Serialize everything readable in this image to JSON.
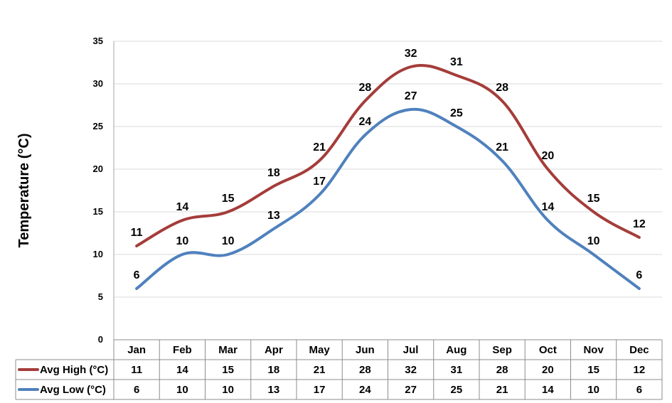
{
  "chart_data": {
    "type": "line",
    "title": "",
    "xlabel": "",
    "ylabel": "Temperature (°C)",
    "ylim": [
      0,
      35
    ],
    "yticks": [
      "0",
      "5",
      "10",
      "15",
      "20",
      "25",
      "30",
      "35"
    ],
    "grid": true,
    "smooth": true,
    "categories": [
      "Jan",
      "Feb",
      "Mar",
      "Apr",
      "May",
      "Jun",
      "Jul",
      "Aug",
      "Sep",
      "Oct",
      "Nov",
      "Dec"
    ],
    "series": [
      {
        "name": "Avg High (°C)",
        "color": "#A43D3A",
        "values": [
          11,
          14,
          15,
          18,
          21,
          28,
          32,
          31,
          28,
          20,
          15,
          12
        ]
      },
      {
        "name": "Avg Low (°C)",
        "color": "#4F81BD",
        "values": [
          6,
          10,
          10,
          13,
          17,
          24,
          27,
          25,
          21,
          14,
          10,
          6
        ]
      }
    ],
    "data_table": true
  }
}
